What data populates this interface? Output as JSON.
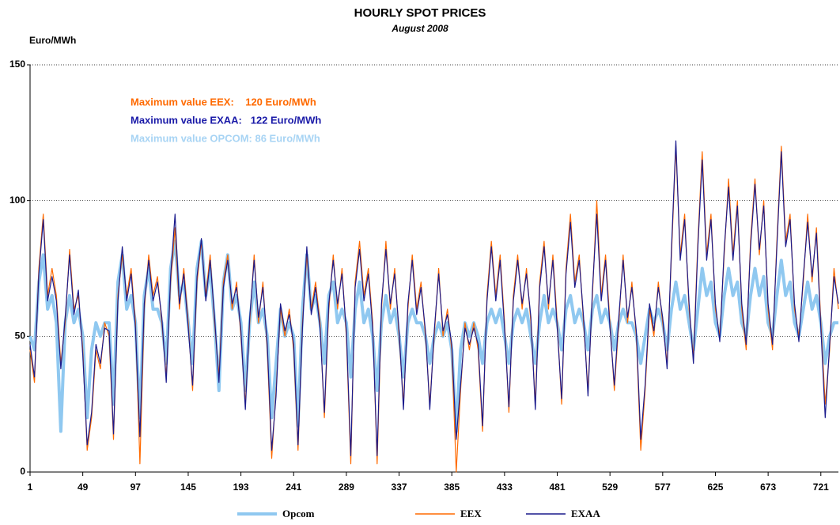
{
  "chart_data": {
    "type": "line",
    "title": "HOURLY SPOT PRICES",
    "subtitle": "August 2008",
    "y_label": "Euro/MWh",
    "annotations": [
      {
        "text": "Maximum value EEX:    120 Euro/MWh",
        "color": "#ff6a00"
      },
      {
        "text": "Maximum value EXAA:   122 Euro/MWh",
        "color": "#1a1aa8"
      },
      {
        "text": "Maximum value OPCOM: 86 Euro/MWh",
        "color": "#a8d4f4"
      }
    ],
    "xlim": [
      1,
      737
    ],
    "xticks": [
      1,
      49,
      97,
      145,
      193,
      241,
      289,
      337,
      385,
      433,
      481,
      529,
      577,
      625,
      673,
      721
    ],
    "ylim": [
      0,
      150
    ],
    "yticks": [
      0,
      50,
      100,
      150
    ],
    "grid": true,
    "legend": "bottom",
    "x": [
      1,
      5,
      9,
      13,
      17,
      21,
      25,
      29,
      33,
      37,
      41,
      45,
      49,
      53,
      57,
      61,
      65,
      69,
      73,
      77,
      81,
      85,
      89,
      93,
      97,
      101,
      105,
      109,
      113,
      117,
      121,
      125,
      129,
      133,
      137,
      141,
      145,
      149,
      153,
      157,
      161,
      165,
      169,
      173,
      177,
      181,
      185,
      189,
      193,
      197,
      201,
      205,
      209,
      213,
      217,
      221,
      225,
      229,
      233,
      237,
      241,
      245,
      249,
      253,
      257,
      261,
      265,
      269,
      273,
      277,
      281,
      285,
      289,
      293,
      297,
      301,
      305,
      309,
      313,
      317,
      321,
      325,
      329,
      333,
      337,
      341,
      345,
      349,
      353,
      357,
      361,
      365,
      369,
      373,
      377,
      381,
      385,
      389,
      393,
      397,
      401,
      405,
      409,
      413,
      417,
      421,
      425,
      429,
      433,
      437,
      441,
      445,
      449,
      453,
      457,
      461,
      465,
      469,
      473,
      477,
      481,
      485,
      489,
      493,
      497,
      501,
      505,
      509,
      513,
      517,
      521,
      525,
      529,
      533,
      537,
      541,
      545,
      549,
      553,
      557,
      561,
      565,
      569,
      573,
      577,
      581,
      585,
      589,
      593,
      597,
      601,
      605,
      609,
      613,
      617,
      621,
      625,
      629,
      633,
      637,
      641,
      645,
      649,
      653,
      657,
      661,
      665,
      669,
      673,
      677,
      681,
      685,
      689,
      693,
      697,
      701,
      705,
      709,
      713,
      717,
      721,
      725,
      729,
      733,
      737
    ],
    "series": [
      {
        "name": "Opcom",
        "color": "#8fc8f0",
        "width": 4,
        "values": [
          50,
          45,
          70,
          80,
          60,
          65,
          55,
          15,
          55,
          65,
          55,
          60,
          50,
          20,
          45,
          55,
          50,
          55,
          55,
          25,
          70,
          80,
          60,
          65,
          55,
          20,
          65,
          75,
          60,
          60,
          55,
          40,
          75,
          85,
          65,
          70,
          55,
          40,
          75,
          85,
          65,
          75,
          55,
          30,
          70,
          80,
          60,
          65,
          55,
          30,
          55,
          70,
          55,
          60,
          50,
          20,
          40,
          60,
          50,
          55,
          50,
          17,
          60,
          80,
          60,
          65,
          55,
          40,
          65,
          70,
          55,
          60,
          55,
          35,
          60,
          70,
          55,
          60,
          50,
          30,
          55,
          65,
          55,
          60,
          50,
          35,
          55,
          60,
          55,
          55,
          50,
          40,
          50,
          55,
          50,
          55,
          45,
          15,
          45,
          55,
          50,
          55,
          50,
          40,
          55,
          60,
          55,
          60,
          50,
          40,
          55,
          60,
          55,
          60,
          50,
          40,
          55,
          65,
          55,
          60,
          55,
          45,
          60,
          65,
          55,
          60,
          55,
          45,
          60,
          65,
          55,
          60,
          55,
          45,
          55,
          60,
          55,
          55,
          50,
          40,
          50,
          60,
          55,
          60,
          55,
          45,
          60,
          70,
          60,
          65,
          55,
          45,
          60,
          75,
          65,
          70,
          55,
          50,
          65,
          75,
          65,
          70,
          55,
          50,
          65,
          75,
          65,
          72,
          55,
          50,
          65,
          78,
          65,
          70,
          55,
          50,
          60,
          70,
          60,
          65,
          55,
          40,
          50,
          55,
          55
        ]
      },
      {
        "name": "EEX",
        "color": "#ff6a00",
        "width": 1.2,
        "values": [
          45,
          33,
          75,
          95,
          65,
          75,
          65,
          40,
          55,
          82,
          60,
          65,
          45,
          8,
          20,
          45,
          38,
          55,
          50,
          12,
          65,
          80,
          65,
          75,
          55,
          3,
          60,
          80,
          65,
          72,
          55,
          35,
          70,
          90,
          60,
          75,
          55,
          30,
          70,
          85,
          65,
          80,
          55,
          35,
          70,
          80,
          60,
          70,
          50,
          25,
          55,
          80,
          55,
          70,
          45,
          5,
          30,
          60,
          50,
          60,
          45,
          8,
          55,
          80,
          60,
          70,
          55,
          20,
          60,
          80,
          60,
          75,
          50,
          3,
          70,
          85,
          65,
          75,
          55,
          3,
          60,
          85,
          60,
          75,
          50,
          25,
          60,
          80,
          60,
          70,
          50,
          25,
          50,
          75,
          50,
          60,
          45,
          0,
          30,
          55,
          45,
          55,
          45,
          15,
          65,
          85,
          65,
          80,
          55,
          22,
          65,
          80,
          60,
          75,
          55,
          25,
          70,
          85,
          60,
          80,
          55,
          25,
          75,
          95,
          70,
          80,
          55,
          30,
          65,
          100,
          65,
          80,
          55,
          30,
          55,
          80,
          55,
          70,
          50,
          8,
          30,
          60,
          50,
          70,
          55,
          40,
          80,
          120,
          80,
          95,
          60,
          42,
          85,
          118,
          80,
          95,
          60,
          50,
          80,
          108,
          80,
          100,
          60,
          45,
          85,
          108,
          80,
          100,
          60,
          45,
          85,
          120,
          85,
          95,
          60,
          50,
          70,
          95,
          70,
          90,
          55,
          25,
          45,
          75,
          60
        ]
      },
      {
        "name": "EXAA",
        "color": "#1a1a8c",
        "width": 1.2,
        "values": [
          47,
          35,
          73,
          93,
          63,
          72,
          63,
          38,
          57,
          80,
          58,
          67,
          43,
          10,
          22,
          47,
          40,
          53,
          52,
          14,
          63,
          83,
          63,
          73,
          53,
          13,
          62,
          78,
          63,
          70,
          57,
          33,
          72,
          95,
          62,
          73,
          53,
          32,
          72,
          86,
          63,
          78,
          57,
          33,
          68,
          78,
          62,
          68,
          52,
          23,
          57,
          78,
          57,
          68,
          47,
          8,
          28,
          62,
          52,
          58,
          47,
          10,
          53,
          83,
          58,
          68,
          53,
          22,
          62,
          78,
          62,
          73,
          52,
          6,
          68,
          82,
          63,
          73,
          53,
          6,
          62,
          82,
          62,
          73,
          52,
          23,
          62,
          78,
          58,
          68,
          52,
          23,
          52,
          73,
          52,
          58,
          47,
          12,
          32,
          53,
          47,
          53,
          47,
          17,
          63,
          83,
          63,
          78,
          53,
          24,
          63,
          78,
          62,
          73,
          57,
          23,
          68,
          83,
          62,
          78,
          53,
          27,
          73,
          92,
          68,
          78,
          57,
          28,
          67,
          95,
          63,
          78,
          53,
          32,
          57,
          78,
          57,
          68,
          52,
          12,
          32,
          62,
          52,
          68,
          57,
          38,
          82,
          122,
          78,
          93,
          62,
          40,
          83,
          115,
          78,
          93,
          62,
          48,
          82,
          105,
          78,
          98,
          62,
          47,
          83,
          106,
          82,
          98,
          62,
          47,
          83,
          118,
          83,
          93,
          62,
          48,
          72,
          92,
          72,
          88,
          53,
          20,
          47,
          72,
          62
        ]
      }
    ]
  }
}
